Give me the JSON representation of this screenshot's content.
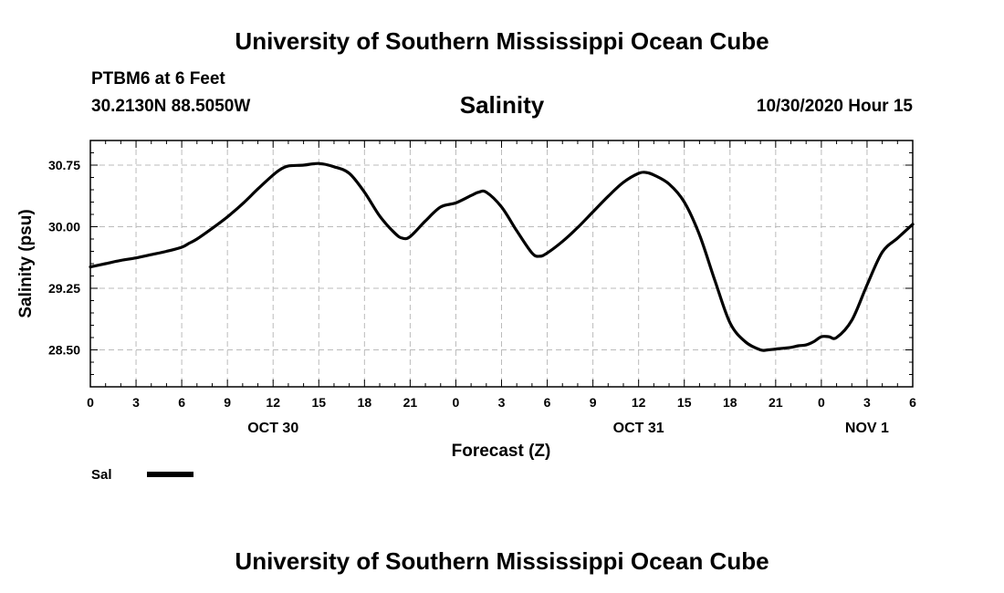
{
  "header": {
    "title": "University of Southern Mississippi Ocean Cube",
    "station": "PTBM6 at 6 Feet",
    "coords": "30.2130N 88.5050W",
    "datetime": "10/30/2020 Hour 15"
  },
  "footer": {
    "title": "University of Southern Mississippi Ocean Cube"
  },
  "legend": {
    "label": "Sal"
  },
  "colors": {
    "line": "#000000",
    "grid": "#bbbbbb",
    "axis": "#000000"
  },
  "chart_data": {
    "type": "line",
    "title": "Salinity",
    "xlabel": "Forecast (Z)",
    "ylabel": "Salinity (psu)",
    "xlim": [
      0,
      54
    ],
    "ylim": [
      28.05,
      31.05
    ],
    "y_ticks": [
      28.5,
      29.25,
      30.0,
      30.75
    ],
    "y_tick_labels": [
      "28.50",
      "29.25",
      "30.00",
      "30.75"
    ],
    "x_ticks": [
      0,
      3,
      6,
      9,
      12,
      15,
      18,
      21,
      24,
      27,
      30,
      33,
      36,
      39,
      42,
      45,
      48,
      51,
      54
    ],
    "x_tick_labels": [
      "0",
      "3",
      "6",
      "9",
      "12",
      "15",
      "18",
      "21",
      "0",
      "3",
      "6",
      "9",
      "12",
      "15",
      "18",
      "21",
      "0",
      "3",
      "6"
    ],
    "date_labels": [
      {
        "x": 12,
        "label": "OCT 30"
      },
      {
        "x": 36,
        "label": "OCT 31"
      },
      {
        "x": 51,
        "label": "NOV 1"
      }
    ],
    "grid": true,
    "legend_position": "bottom-left",
    "series": [
      {
        "name": "Sal",
        "x": [
          0,
          1,
          2,
          3,
          4,
          5,
          6,
          6.5,
          7,
          8,
          9,
          10,
          11,
          12,
          12.5,
          13,
          14,
          15,
          16,
          17,
          18,
          19,
          20,
          20.5,
          21,
          22,
          23,
          24,
          25,
          25.5,
          26,
          27,
          28,
          29,
          29.5,
          30,
          31,
          32,
          33,
          34,
          35,
          36,
          36.5,
          37,
          38,
          39,
          40,
          41,
          42,
          43,
          44,
          44.5,
          45,
          46,
          46.5,
          47,
          47.5,
          48,
          48.5,
          49,
          50,
          51,
          52,
          53,
          54
        ],
        "y": [
          29.51,
          29.55,
          29.59,
          29.62,
          29.66,
          29.7,
          29.75,
          29.8,
          29.85,
          29.98,
          30.12,
          30.28,
          30.46,
          30.63,
          30.7,
          30.74,
          30.75,
          30.77,
          30.73,
          30.65,
          30.42,
          30.13,
          29.92,
          29.86,
          29.88,
          30.07,
          30.24,
          30.29,
          30.38,
          30.42,
          30.42,
          30.24,
          29.95,
          29.68,
          29.64,
          29.68,
          29.82,
          29.99,
          30.18,
          30.37,
          30.54,
          30.65,
          30.66,
          30.63,
          30.52,
          30.3,
          29.9,
          29.35,
          28.83,
          28.6,
          28.5,
          28.5,
          28.51,
          28.53,
          28.55,
          28.56,
          28.6,
          28.66,
          28.66,
          28.65,
          28.86,
          29.29,
          29.69,
          29.86,
          30.03
        ]
      }
    ]
  }
}
